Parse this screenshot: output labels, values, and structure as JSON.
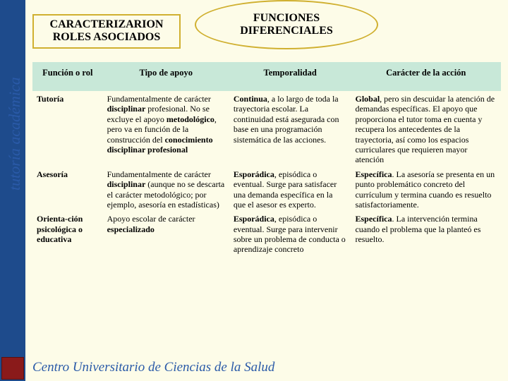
{
  "header": {
    "box_left_l1": "CARACTERIZARION",
    "box_left_l2": "ROLES ASOCIADOS",
    "oval_l1": "FUNCIONES",
    "oval_l2": "DIFERENCIALES"
  },
  "sidetext": "tutoría académica",
  "footer": "Centro Universitario de Ciencias de la Salud",
  "table": {
    "headers": [
      "Función o rol",
      "Tipo de apoyo",
      "Temporalidad",
      "Carácter de la acción"
    ],
    "rows": [
      {
        "c0": "Tutoría",
        "c1": "Fundamentalmente de carácter <b>disciplinar</b> profesional. No se excluye el apoyo <b>metodológico</b>, pero va en función de la construcción del <b>conocimiento disciplinar profesional</b>",
        "c2": "<b>Continua</b>, a lo largo de toda la trayectoria escolar. La continuidad está asegurada con base en una programación sistemática de las acciones.",
        "c3": "<b>Global</b>, pero sin descuidar la atención de demandas específicas. El apoyo que proporciona el tutor toma en cuenta y recupera los antecedentes de la trayectoria, así como los espacios curriculares que requieren mayor atención"
      },
      {
        "c0": "Asesoría",
        "c1": "Fundamentalmente de carácter <b>disciplinar</b> (aunque no se descarta el carácter metodológico; por ejemplo, asesoría en estadísticas)",
        "c2": "<b>Esporádica</b>, episódica o eventual. Surge para satisfacer una demanda específica en la que el asesor es experto.",
        "c3": "<b>Específica</b>. La asesoría se presenta en un punto problemático concreto del currículum y termina cuando es resuelto satisfactoriamente."
      },
      {
        "c0": "Orienta-ción psicológica o educativa",
        "c1": "Apoyo escolar de carácter <b>especializado</b>",
        "c2": "<b>Esporádica</b>, episódica o eventual. Surge para intervenir sobre un problema de conducta o aprendizaje concreto",
        "c3": "<b>Específica</b>. La intervención termina cuando el problema que la planteó es resuelto."
      }
    ]
  },
  "colors": {
    "page_bg": "#1e4b8c",
    "slide_bg": "#fdfce8",
    "header_row_bg": "#c8e8d8",
    "box_border": "#d0b030",
    "footer_color": "#2a5aa8"
  }
}
